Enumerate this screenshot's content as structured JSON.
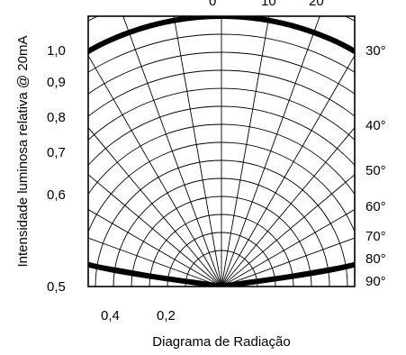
{
  "chart_data": {
    "type": "polar-line",
    "title": "",
    "xlabel": "Diagrama de Radiação",
    "ylabel": "Intensidade luminosa relativa @ 20mA",
    "angle_unit": "degrees",
    "angle_grid_step": 10,
    "angle_range": [
      -90,
      90
    ],
    "left_axis_labels": [
      "1,0",
      "0,9",
      "0,8",
      "0,7",
      "0,6",
      "0,5"
    ],
    "bottom_axis_labels": [
      "0,4",
      "0,2"
    ],
    "top_angle_labels": [
      "0",
      "10",
      "20"
    ],
    "right_angle_labels": [
      "30°",
      "40°",
      "50°",
      "60°",
      "70°",
      "80°",
      "90°"
    ],
    "grid": true,
    "series": [
      {
        "color": "#000000",
        "curve": [
          {
            "angle": -90,
            "value": 0.0
          },
          {
            "angle": -80,
            "value": 0.55
          },
          {
            "angle": -70,
            "value": 0.77
          },
          {
            "angle": -60,
            "value": 0.88
          },
          {
            "angle": -50,
            "value": 0.95
          },
          {
            "angle": -40,
            "value": 0.99
          },
          {
            "angle": -30,
            "value": 1.0
          },
          {
            "angle": -20,
            "value": 1.0
          },
          {
            "angle": -10,
            "value": 1.0
          },
          {
            "angle": 0,
            "value": 1.0
          },
          {
            "angle": 10,
            "value": 1.0
          },
          {
            "angle": 20,
            "value": 1.0
          },
          {
            "angle": 30,
            "value": 1.0
          },
          {
            "angle": 40,
            "value": 0.99
          },
          {
            "angle": 50,
            "value": 0.95
          },
          {
            "angle": 60,
            "value": 0.88
          },
          {
            "angle": 70,
            "value": 0.77
          },
          {
            "angle": 80,
            "value": 0.55
          },
          {
            "angle": 90,
            "value": 0.0
          }
        ]
      }
    ]
  }
}
